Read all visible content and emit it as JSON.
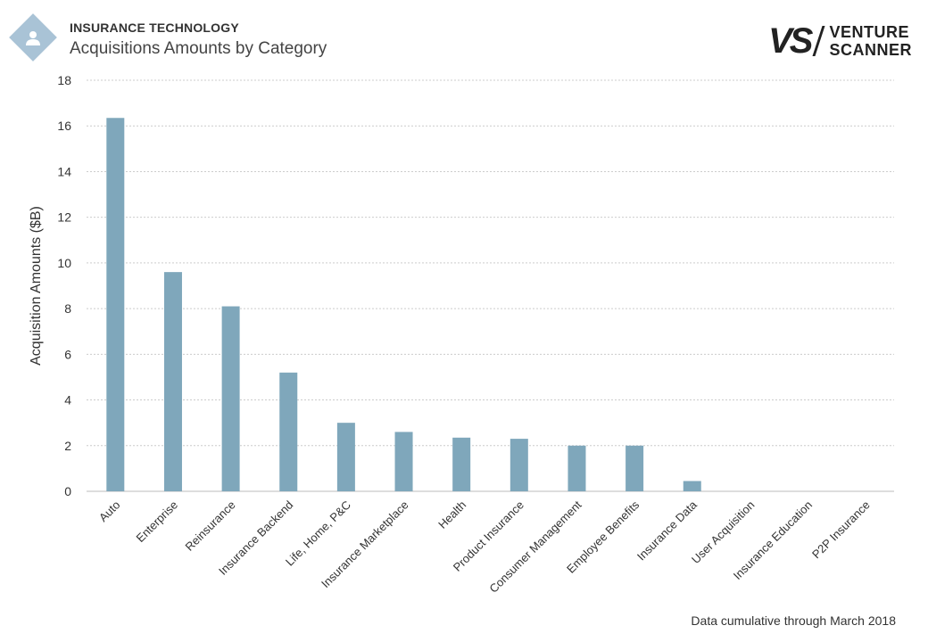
{
  "header": {
    "supertitle": "INSURANCE TECHNOLOGY",
    "title": "Acquisitions Amounts by Category",
    "brand_mark": "VS",
    "brand_line1": "VENTURE",
    "brand_line2": "SCANNER"
  },
  "footer": {
    "note": "Data cumulative through March 2018"
  },
  "colors": {
    "bar": "#7fa7bb",
    "grid": "#cccccc",
    "logo": "#a9c3d6"
  },
  "chart_data": {
    "type": "bar",
    "title": "Acquisitions Amounts by Category",
    "ylabel": "Acquisition Amounts ($B)",
    "xlabel": "",
    "ylim": [
      0,
      18
    ],
    "yticks": [
      0,
      2,
      4,
      6,
      8,
      10,
      12,
      14,
      16,
      18
    ],
    "grid": true,
    "categories": [
      "Auto",
      "Enterprise",
      "Reinsurance",
      "Insurance Backend",
      "Life, Home, P&C",
      "Insurance Marketplace",
      "Health",
      "Product Insurance",
      "Consumer Management",
      "Employee Benefits",
      "Insurance Data",
      "User Acquisition",
      "Insurance Education",
      "P2P Insurance"
    ],
    "values": [
      16.35,
      9.6,
      8.1,
      5.2,
      3.0,
      2.6,
      2.35,
      2.3,
      2.0,
      2.0,
      0.45,
      0,
      0,
      0
    ]
  }
}
